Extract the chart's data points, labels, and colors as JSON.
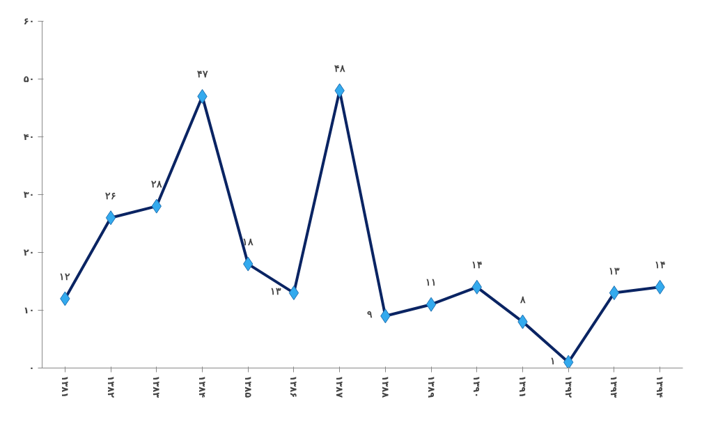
{
  "chart_data": {
    "type": "line",
    "categories": [
      "۱۳۸۱",
      "۱۳۸۲",
      "۱۳۸۳",
      "۱۳۸۴",
      "۱۳۸۵",
      "۱۳۸۶",
      "۱۳۸۷",
      "۱۳۸۸",
      "۱۳۸۹",
      "۱۳۹۰",
      "۱۳۹۱",
      "۱۳۹۲",
      "۱۳۹۳",
      "۱۳۹۴"
    ],
    "series": [
      {
        "color": "#0a2463",
        "values": [
          12,
          26,
          28,
          47,
          18,
          13,
          48,
          9,
          11,
          14,
          8,
          1,
          13,
          14
        ],
        "value_labels": [
          "۱۲",
          "۲۶",
          "۲۸",
          "۴۷",
          "۱۸",
          "۱۳",
          "۴۸",
          "۹",
          "۱۱",
          "۱۴",
          "۸",
          "۱",
          "۱۳",
          "۱۴"
        ]
      }
    ],
    "marker": "diamond",
    "ylim": [
      0,
      60
    ],
    "yticks": [
      {
        "value": 0,
        "label": "۰"
      },
      {
        "value": 10,
        "label": "۱۰"
      },
      {
        "value": 20,
        "label": "۲۰"
      },
      {
        "value": 30,
        "label": "۳۰"
      },
      {
        "value": 40,
        "label": "۴۰"
      },
      {
        "value": 50,
        "label": "۵۰"
      },
      {
        "value": 60,
        "label": "۶۰"
      }
    ],
    "grid": false
  }
}
